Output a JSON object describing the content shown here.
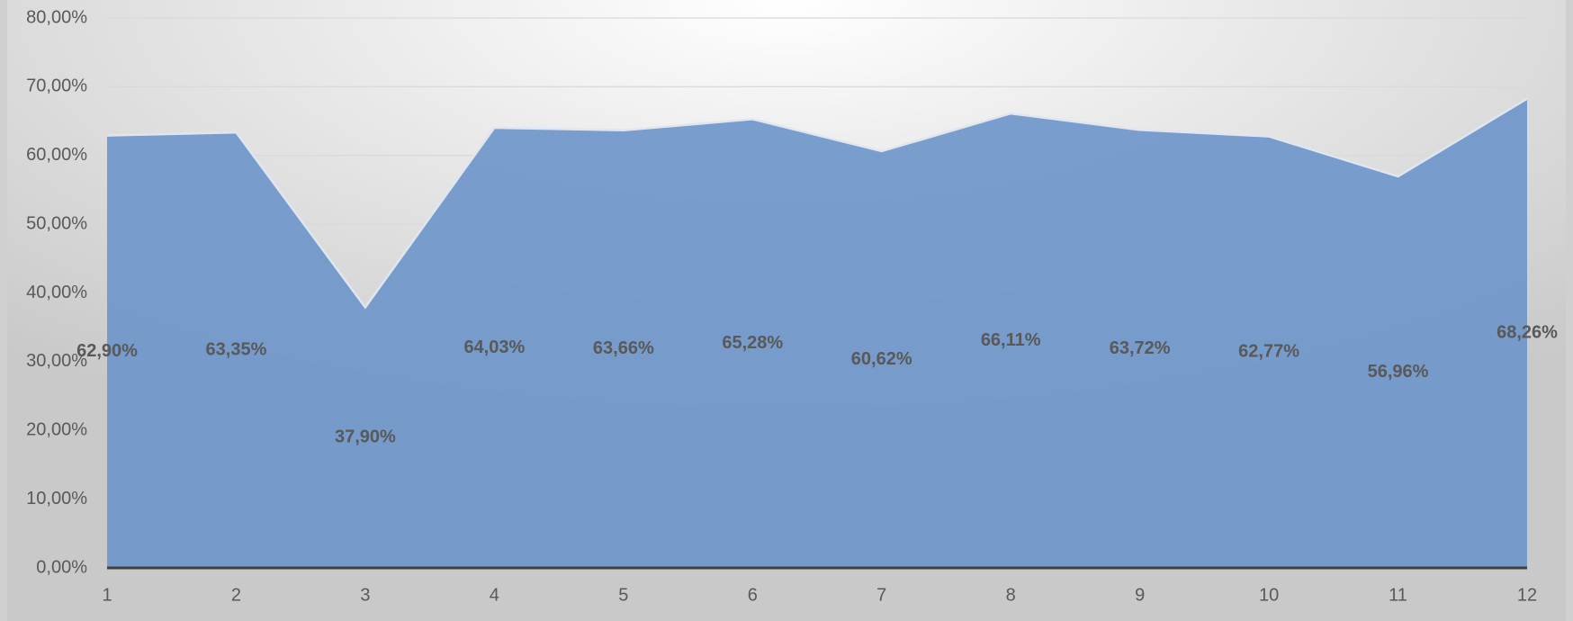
{
  "chart_data": {
    "type": "area",
    "categories": [
      "1",
      "2",
      "3",
      "4",
      "5",
      "6",
      "7",
      "8",
      "9",
      "10",
      "11",
      "12"
    ],
    "series": [
      {
        "color": "#6f96c9",
        "values": [
          62.9,
          63.35,
          37.9,
          64.03,
          63.66,
          65.28,
          60.62,
          66.11,
          63.72,
          62.77,
          56.96,
          68.26
        ],
        "value_labels": [
          "62,90%",
          "63,35%",
          "37,90%",
          "64,03%",
          "63,66%",
          "65,28%",
          "60,62%",
          "66,11%",
          "63,72%",
          "62,77%",
          "56,96%",
          "68,26%"
        ]
      }
    ],
    "ylim": [
      0,
      80
    ],
    "yticks": [
      {
        "value": 0,
        "label": "0,00%"
      },
      {
        "value": 10,
        "label": "10,00%"
      },
      {
        "value": 20,
        "label": "20,00%"
      },
      {
        "value": 30,
        "label": "30,00%"
      },
      {
        "value": 40,
        "label": "40,00%"
      },
      {
        "value": 50,
        "label": "50,00%"
      },
      {
        "value": 60,
        "label": "60,00%"
      },
      {
        "value": 70,
        "label": "70,00%"
      },
      {
        "value": 80,
        "label": "80,00%"
      }
    ],
    "grid": true
  }
}
